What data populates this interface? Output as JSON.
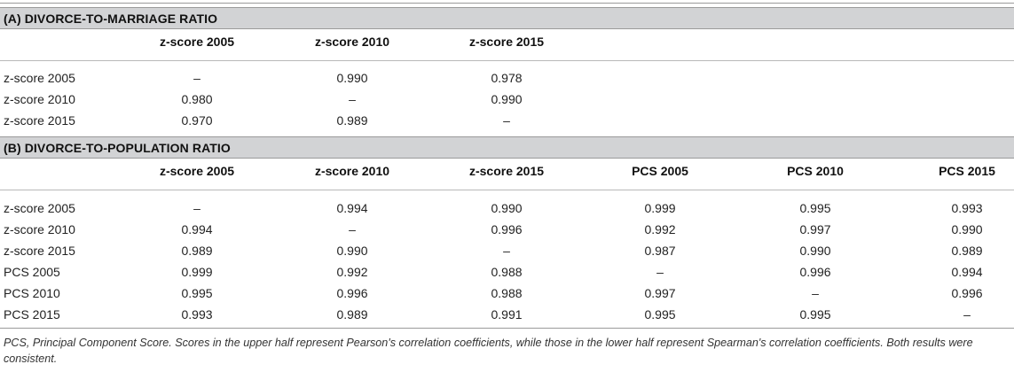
{
  "section_a": {
    "title": "(A) DIVORCE-TO-MARRIAGE RATIO",
    "headers": [
      "z-score 2005",
      "z-score 2010",
      "z-score 2015"
    ],
    "rows": [
      {
        "label": "z-score 2005",
        "values": [
          "–",
          "0.990",
          "0.978"
        ]
      },
      {
        "label": "z-score 2010",
        "values": [
          "0.980",
          "–",
          "0.990"
        ]
      },
      {
        "label": "z-score 2015",
        "values": [
          "0.970",
          "0.989",
          "–"
        ]
      }
    ]
  },
  "section_b": {
    "title": "(B) DIVORCE-TO-POPULATION RATIO",
    "headers": [
      "z-score 2005",
      "z-score 2010",
      "z-score 2015",
      "PCS 2005",
      "PCS 2010",
      "PCS 2015"
    ],
    "rows": [
      {
        "label": "z-score 2005",
        "values": [
          "–",
          "0.994",
          "0.990",
          "0.999",
          "0.995",
          "0.993"
        ]
      },
      {
        "label": "z-score 2010",
        "values": [
          "0.994",
          "–",
          "0.996",
          "0.992",
          "0.997",
          "0.990"
        ]
      },
      {
        "label": "z-score 2015",
        "values": [
          "0.989",
          "0.990",
          "–",
          "0.987",
          "0.990",
          "0.989"
        ]
      },
      {
        "label": "PCS 2005",
        "values": [
          "0.999",
          "0.992",
          "0.988",
          "–",
          "0.996",
          "0.994"
        ]
      },
      {
        "label": "PCS 2010",
        "values": [
          "0.995",
          "0.996",
          "0.988",
          "0.997",
          "–",
          "0.996"
        ]
      },
      {
        "label": "PCS 2015",
        "values": [
          "0.993",
          "0.989",
          "0.991",
          "0.995",
          "0.995",
          "–"
        ]
      }
    ]
  },
  "footnote": "PCS, Principal Component Score. Scores in the upper half represent Pearson's correlation coefficients, while those in the lower half represent Spearman's correlation coefficients. Both results were consistent."
}
